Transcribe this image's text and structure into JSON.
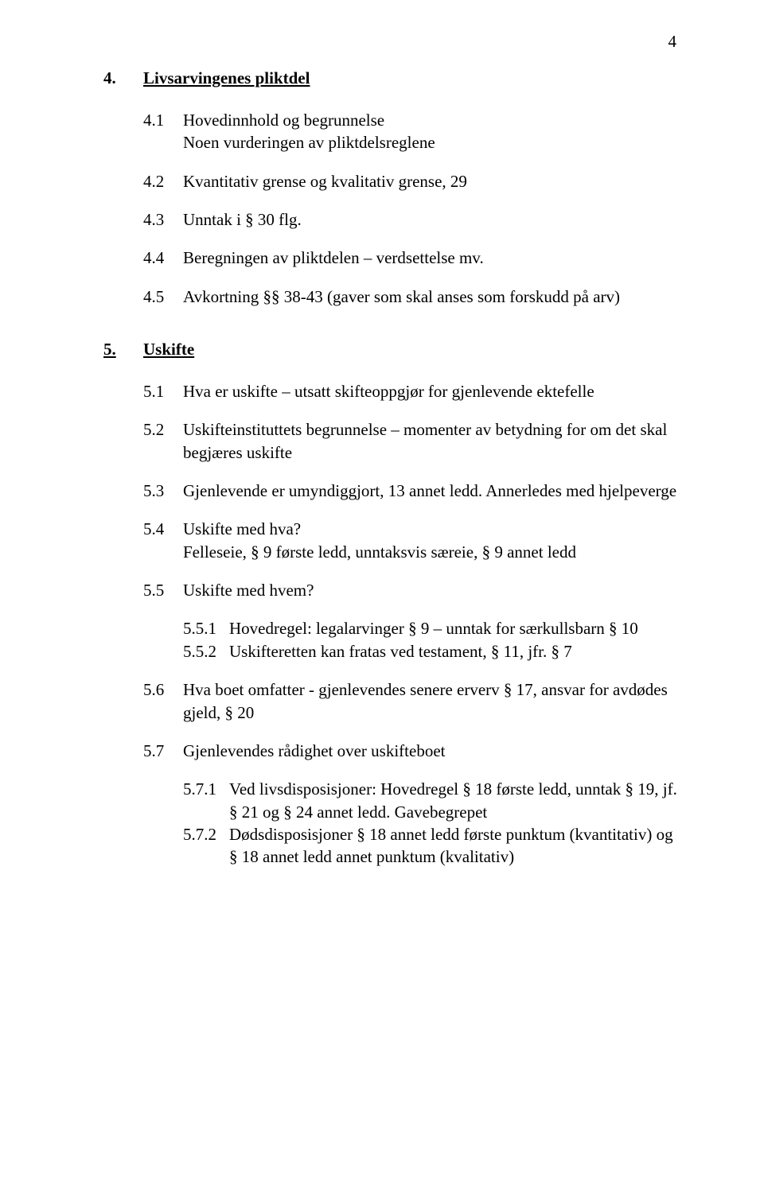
{
  "pageNumber": "4",
  "section4": {
    "num": "4.",
    "title": "Livsarvingenes pliktdel",
    "items": [
      {
        "num": "4.1",
        "text": "Hovedinnhold og begrunnelse\nNoen vurderingen av pliktdelsreglene"
      },
      {
        "num": "4.2",
        "text": "Kvantitativ grense og kvalitativ grense, 29"
      },
      {
        "num": "4.3",
        "text": "Unntak i  § 30 flg."
      },
      {
        "num": "4.4",
        "text": "Beregningen av pliktdelen – verdsettelse mv."
      },
      {
        "num": "4.5",
        "text": "Avkortning §§ 38-43 (gaver som skal anses som forskudd på arv)"
      }
    ]
  },
  "section5": {
    "num": "5.",
    "title": "Uskifte",
    "items": [
      {
        "num": "5.1",
        "text": "Hva er uskifte – utsatt skifteoppgjør for gjenlevende ektefelle"
      },
      {
        "num": "5.2",
        "text": "Uskifteinstituttets begrunnelse – momenter av betydning for om det skal begjæres uskifte"
      },
      {
        "num": "5.3",
        "text": "Gjenlevende er umyndiggjort, 13 annet ledd. Annerledes med hjelpeverge"
      },
      {
        "num": "5.4",
        "text": "Uskifte med hva?\nFelleseie, § 9 første ledd, unntaksvis særeie, § 9 annet ledd"
      },
      {
        "num": "5.5",
        "text": "Uskifte med hvem?",
        "sub": [
          {
            "num": "5.5.1",
            "text": "Hovedregel: legalarvinger § 9 – unntak for særkullsbarn § 10"
          },
          {
            "num": "5.5.2",
            "text": "Uskifteretten kan fratas ved testament, § 11, jfr. § 7"
          }
        ]
      },
      {
        "num": "5.6",
        "text": "Hva boet omfatter - gjenlevendes senere erverv § 17, ansvar for avdødes gjeld, § 20"
      },
      {
        "num": "5.7",
        "text": "Gjenlevendes rådighet over uskifteboet",
        "sub": [
          {
            "num": "5.7.1",
            "text": "Ved livsdisposisjoner: Hovedregel § 18 første ledd, unntak § 19, jf. § 21 og § 24 annet ledd. Gavebegrepet"
          },
          {
            "num": "5.7.2",
            "text": "Dødsdisposisjoner § 18 annet ledd første punktum (kvantitativ) og § 18 annet ledd annet punktum (kvalitativ)"
          }
        ]
      }
    ]
  }
}
